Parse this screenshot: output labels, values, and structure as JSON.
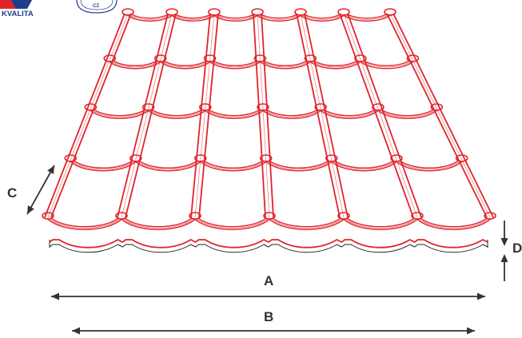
{
  "logo": {
    "text": "KVALITA",
    "seal_text": "CZ",
    "colors": {
      "red": "#e0242c",
      "blue": "#1d3f8a"
    }
  },
  "dimensions": {
    "A": "A",
    "B": "B",
    "C": "C",
    "D": "D"
  },
  "colors": {
    "tile_stroke": "#e0242c",
    "tile_fill": "#ffffff",
    "dimension_line": "#333333",
    "profile_stroke": "#222222"
  },
  "tile_grid": {
    "columns": 6,
    "rows": 4
  }
}
